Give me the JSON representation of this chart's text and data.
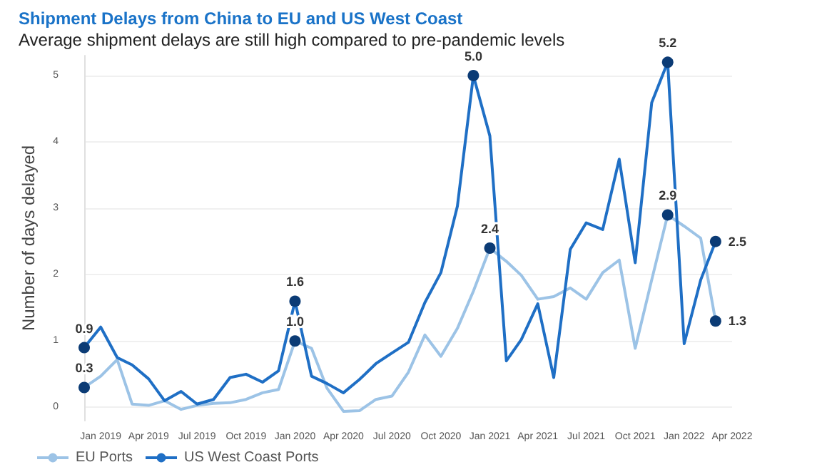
{
  "chart_data": {
    "type": "line",
    "title": "Shipment Delays from China to EU and US West Coast",
    "subtitle": "Average shipment delays are still high compared to pre-pandemic levels",
    "ylabel": "Number of days delayed",
    "x": [
      "2018-12",
      "2019-01",
      "2019-02",
      "2019-03",
      "2019-04",
      "2019-05",
      "2019-06",
      "2019-07",
      "2019-08",
      "2019-09",
      "2019-10",
      "2019-11",
      "2019-12",
      "2020-01",
      "2020-02",
      "2020-03",
      "2020-04",
      "2020-05",
      "2020-06",
      "2020-07",
      "2020-08",
      "2020-09",
      "2020-10",
      "2020-11",
      "2020-12",
      "2021-01",
      "2021-02",
      "2021-03",
      "2021-04",
      "2021-05",
      "2021-06",
      "2021-07",
      "2021-08",
      "2021-09",
      "2021-10",
      "2021-11",
      "2021-12",
      "2022-01",
      "2022-02",
      "2022-03"
    ],
    "series": [
      {
        "name": "EU Ports",
        "color": "#9cc3e6",
        "values": [
          0.3,
          0.47,
          0.72,
          0.05,
          0.03,
          0.1,
          -0.03,
          0.03,
          0.06,
          0.07,
          0.12,
          0.22,
          0.27,
          1.0,
          0.89,
          0.29,
          -0.06,
          -0.05,
          0.12,
          0.17,
          0.53,
          1.09,
          0.77,
          1.19,
          1.75,
          2.4,
          2.2,
          1.99,
          1.63,
          1.67,
          1.8,
          1.63,
          2.03,
          2.22,
          0.89,
          1.92,
          2.9,
          2.73,
          2.55,
          1.3
        ],
        "value_labels": [
          "0.3",
          null,
          null,
          null,
          null,
          null,
          null,
          null,
          null,
          null,
          null,
          null,
          null,
          "1.0",
          null,
          null,
          null,
          null,
          null,
          null,
          null,
          null,
          null,
          null,
          null,
          "2.4",
          null,
          null,
          null,
          null,
          null,
          null,
          null,
          null,
          null,
          null,
          "2.9",
          null,
          null,
          "1.3"
        ]
      },
      {
        "name": "US West Coast Ports",
        "color": "#1f6fc5",
        "values": [
          0.9,
          1.21,
          0.75,
          0.64,
          0.43,
          0.1,
          0.24,
          0.05,
          0.12,
          0.45,
          0.5,
          0.38,
          0.55,
          1.6,
          0.47,
          0.36,
          0.22,
          0.42,
          0.66,
          0.82,
          0.98,
          1.58,
          2.03,
          3.03,
          5.0,
          4.09,
          0.7,
          1.02,
          1.56,
          0.45,
          2.38,
          2.78,
          2.68,
          3.74,
          2.18,
          4.59,
          5.2,
          0.96,
          1.92,
          2.5
        ],
        "value_labels": [
          "0.9",
          null,
          null,
          null,
          null,
          null,
          null,
          null,
          null,
          null,
          null,
          null,
          null,
          "1.6",
          null,
          null,
          null,
          null,
          null,
          null,
          null,
          null,
          null,
          null,
          "5.0",
          null,
          null,
          null,
          null,
          null,
          null,
          null,
          null,
          null,
          null,
          null,
          "5.2",
          null,
          null,
          "2.5"
        ]
      }
    ],
    "xlim": [
      "2018-12",
      "2022-04"
    ],
    "xticks": [
      {
        "value": "2019-01",
        "label": "Jan 2019"
      },
      {
        "value": "2019-04",
        "label": "Apr 2019"
      },
      {
        "value": "2019-07",
        "label": "Jul 2019"
      },
      {
        "value": "2019-10",
        "label": "Oct 2019"
      },
      {
        "value": "2020-01",
        "label": "Jan 2020"
      },
      {
        "value": "2020-04",
        "label": "Apr 2020"
      },
      {
        "value": "2020-07",
        "label": "Jul 2020"
      },
      {
        "value": "2020-10",
        "label": "Oct 2020"
      },
      {
        "value": "2021-01",
        "label": "Jan 2021"
      },
      {
        "value": "2021-04",
        "label": "Apr 2021"
      },
      {
        "value": "2021-07",
        "label": "Jul 2021"
      },
      {
        "value": "2021-10",
        "label": "Oct 2021"
      },
      {
        "value": "2022-01",
        "label": "Jan 2022"
      },
      {
        "value": "2022-04",
        "label": "Apr 2022"
      }
    ],
    "ylim": [
      -0.2,
      5.3
    ],
    "yticks": [
      0,
      1,
      2,
      3,
      4,
      5
    ],
    "grid": "y",
    "legend": "bottom left",
    "line_style": "solid"
  }
}
